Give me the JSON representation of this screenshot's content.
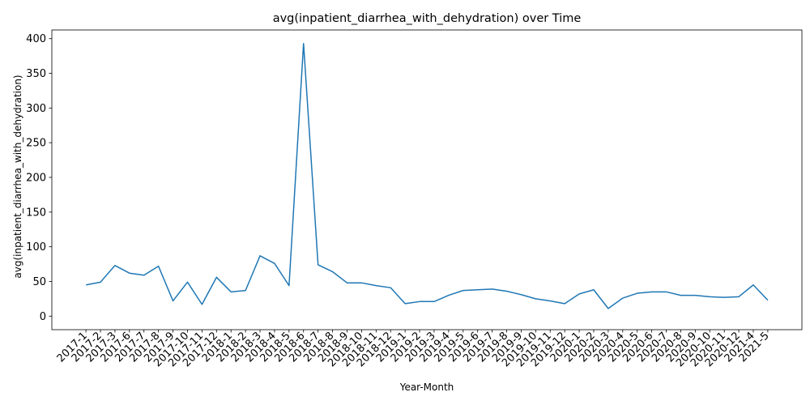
{
  "chart_data": {
    "type": "line",
    "title": "avg(inpatient_diarrhea_with_dehydration) over Time",
    "xlabel": "Year-Month",
    "ylabel": "avg(inpatient_diarrhea_with_dehydration)",
    "ylim": [
      0,
      400
    ],
    "yticks": [
      0,
      50,
      100,
      150,
      200,
      250,
      300,
      350,
      400
    ],
    "grid": false,
    "line_color": "#1f77b4",
    "categories": [
      "2017-1",
      "2017-2",
      "2017-3",
      "2017-6",
      "2017-7",
      "2017-8",
      "2017-9",
      "2017-10",
      "2017-11",
      "2017-12",
      "2018-1",
      "2018-2",
      "2018-3",
      "2018-4",
      "2018-5",
      "2018-6",
      "2018-7",
      "2018-8",
      "2018-9",
      "2018-10",
      "2018-11",
      "2018-12",
      "2019-1",
      "2019-2",
      "2019-3",
      "2019-4",
      "2019-5",
      "2019-6",
      "2019-7",
      "2019-8",
      "2019-9",
      "2019-10",
      "2019-11",
      "2019-12",
      "2020-1",
      "2020-2",
      "2020-3",
      "2020-4",
      "2020-5",
      "2020-6",
      "2020-7",
      "2020-8",
      "2020-9",
      "2020-10",
      "2020-11",
      "2020-12",
      "2021-4",
      "2021-5"
    ],
    "values": [
      45,
      49,
      73,
      62,
      59,
      72,
      22,
      49,
      17,
      56,
      35,
      37,
      87,
      76,
      44,
      393,
      74,
      64,
      48,
      48,
      44,
      41,
      18,
      21,
      21,
      30,
      37,
      38,
      39,
      36,
      31,
      25,
      22,
      18,
      32,
      38,
      11,
      26,
      33,
      35,
      35,
      30,
      30,
      28,
      27,
      28,
      45,
      23
    ]
  }
}
